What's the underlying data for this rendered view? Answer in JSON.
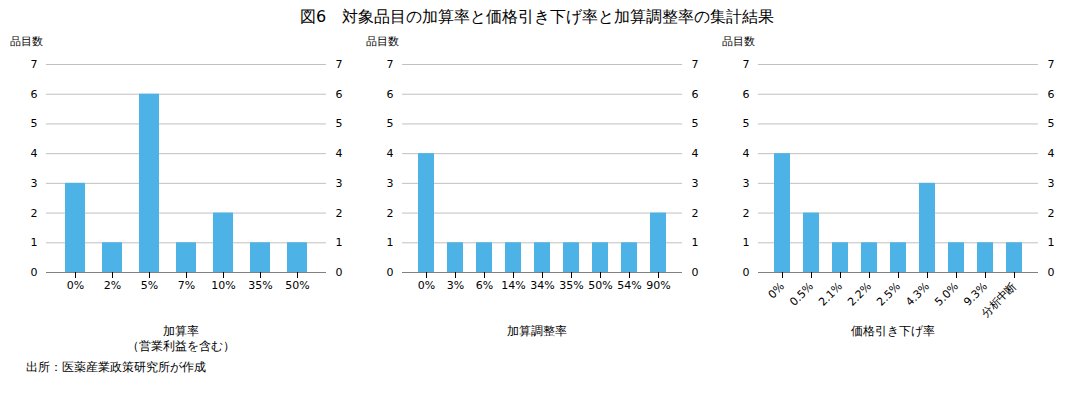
{
  "chart_data": [
    {
      "type": "bar",
      "title": "図6　対象品目の加算率と価格引き下げ率と加算調整率の集計結果",
      "annotations": [
        "出所：医薬産業政策研究所が作成"
      ],
      "categories": [
        "0%",
        "2%",
        "5%",
        "7%",
        "10%",
        "35%",
        "50%"
      ],
      "values": [
        3,
        1,
        6,
        1,
        2,
        1,
        1
      ],
      "color": "#4db3e6",
      "xlabel": "加算率\n（営業利益を含む）",
      "ylabel": "品目数",
      "ylim": [
        0,
        7
      ],
      "yticks": [
        0,
        1,
        2,
        3,
        4,
        5,
        6,
        7
      ],
      "grid": true
    },
    {
      "type": "bar",
      "categories": [
        "0%",
        "3%",
        "6%",
        "14%",
        "34%",
        "35%",
        "50%",
        "54%",
        "90%"
      ],
      "values": [
        4,
        1,
        1,
        1,
        1,
        1,
        1,
        1,
        2
      ],
      "color": "#4db3e6",
      "xlabel": "加算調整率",
      "ylabel": "品目数",
      "ylim": [
        0,
        7
      ],
      "yticks": [
        0,
        1,
        2,
        3,
        4,
        5,
        6,
        7
      ],
      "grid": true
    },
    {
      "type": "bar",
      "categories": [
        "0%",
        "0.5%",
        "2.1%",
        "2.2%",
        "2.5%",
        "4.3%",
        "5.0%",
        "9.3%",
        "分析中断"
      ],
      "values": [
        4,
        2,
        1,
        1,
        1,
        3,
        1,
        1,
        1
      ],
      "color": "#4db3e6",
      "xlabel": "価格引き下げ率",
      "ylabel": "品目数",
      "ylim": [
        0,
        7
      ],
      "yticks": [
        0,
        1,
        2,
        3,
        4,
        5,
        6,
        7
      ],
      "grid": true
    }
  ]
}
